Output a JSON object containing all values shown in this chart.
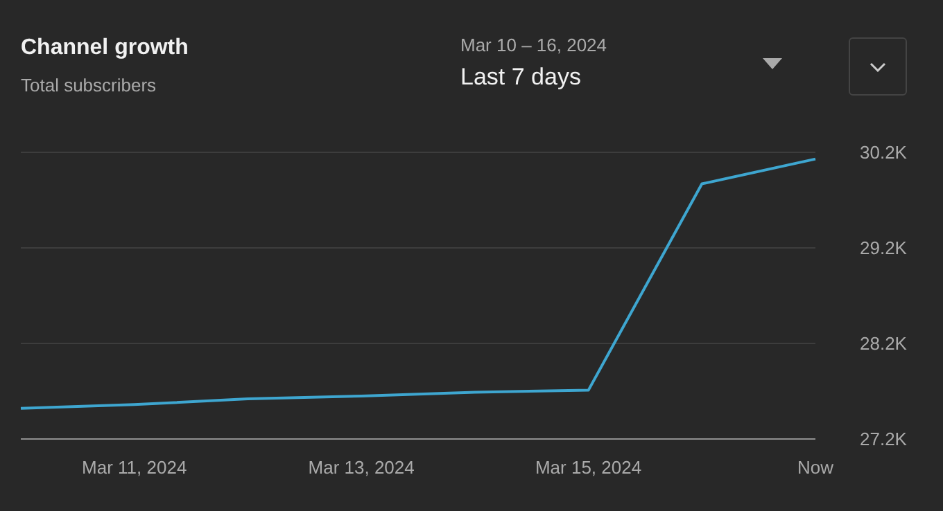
{
  "chart_data": {
    "type": "line",
    "title": "Channel growth",
    "subtitle": "Total subscribers",
    "annotations": [
      "Mar 10 – 16, 2024",
      "Last 7 days"
    ],
    "categories": [
      null,
      "Mar 11, 2024",
      null,
      "Mar 13, 2024",
      null,
      "Mar 15, 2024",
      null,
      "Now"
    ],
    "series": [
      {
        "color": "#3ea6d0",
        "values": [
          27520,
          27560,
          27620,
          27650,
          27690,
          27710,
          29870,
          30130
        ]
      }
    ],
    "ylim": [
      27200,
      30200
    ],
    "yticks": [
      {
        "value": 27200,
        "label": "27.2K"
      },
      {
        "value": 28200,
        "label": "28.2K"
      },
      {
        "value": 29200,
        "label": "29.2K"
      },
      {
        "value": 30200,
        "label": "30.2K"
      }
    ],
    "grid": "y",
    "marker": "none",
    "line_style": "solid"
  }
}
